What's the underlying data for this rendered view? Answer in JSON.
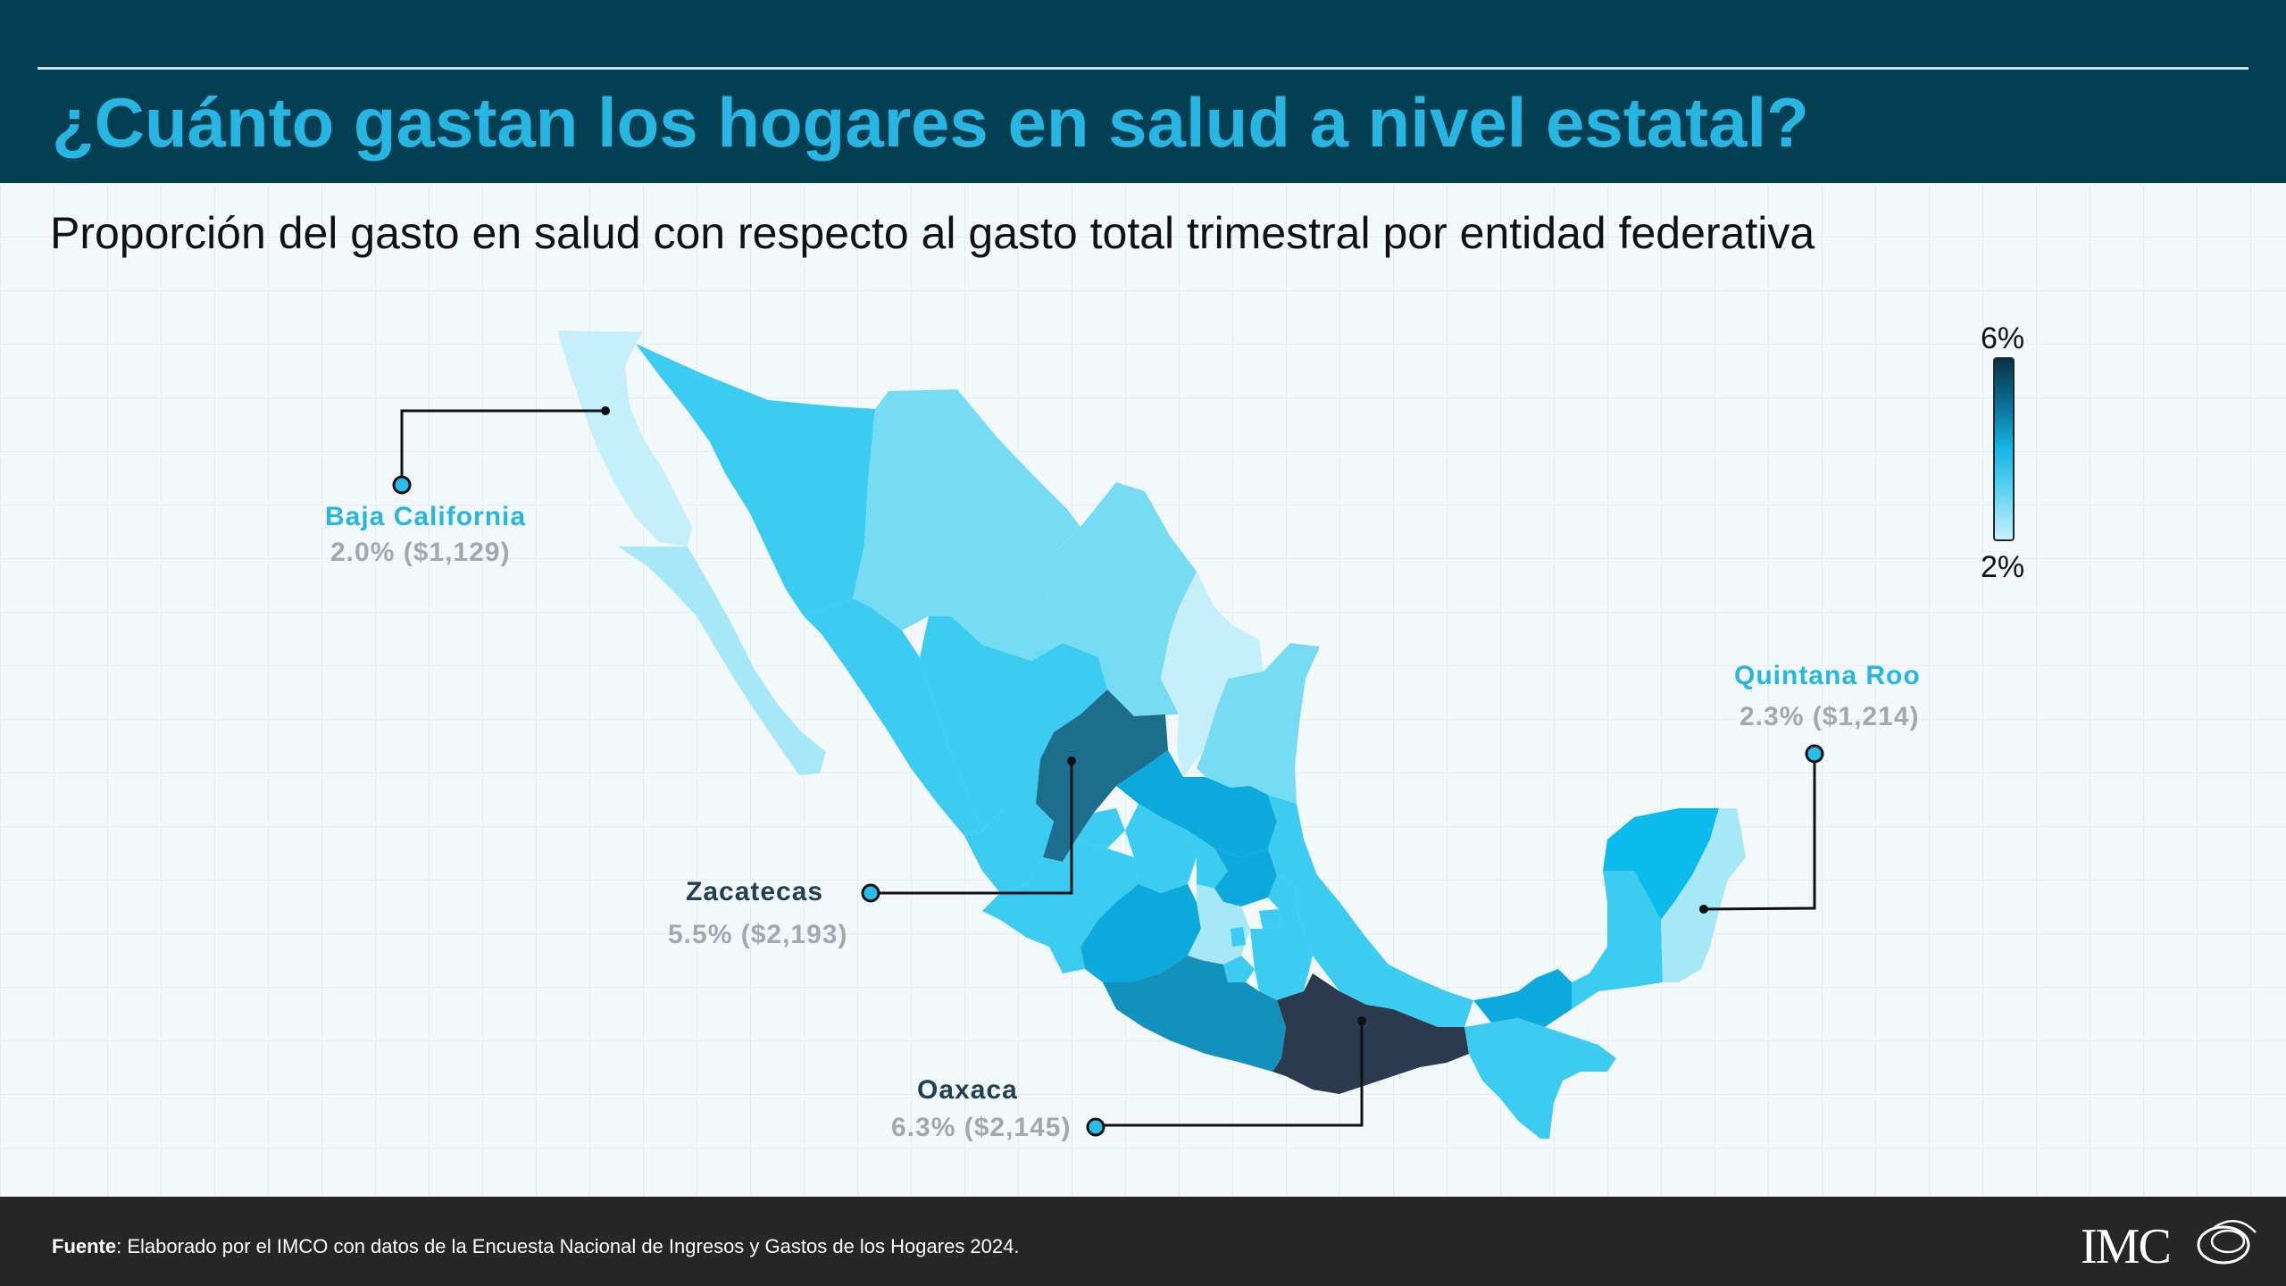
{
  "header": {
    "title": "¿Cuánto gastan los hogares en salud a nivel estatal?"
  },
  "subtitle": "Proporción del gasto en salud con respecto al gasto total trimestral por entidad federativa",
  "legend": {
    "max_label": "6%",
    "min_label": "2%",
    "max_color": "#0a3346",
    "min_color": "#c9f0fb"
  },
  "callouts": {
    "baja_california": {
      "name": "Baja California",
      "value": "2.0% ($1,129)",
      "color": "#27b6e2"
    },
    "quintana_roo": {
      "name": "Quintana Roo",
      "value": "2.3% ($1,214)",
      "color": "#27b6e2"
    },
    "zacatecas": {
      "name": "Zacatecas",
      "value": "5.5% ($2,193)",
      "color": "#1f3f52"
    },
    "oaxaca": {
      "name": "Oaxaca",
      "value": "6.3% ($2,145)",
      "color": "#1f3f52"
    }
  },
  "map_colors": {
    "darkest": "#2c3a4f",
    "dark": "#1d6d8c",
    "mid_dark": "#1391bd",
    "mid": "#0ba9dc",
    "base": "#3ccbf1",
    "light": "#75dcf4",
    "lighter": "#a6e8f8",
    "lightest": "#c5f0fb"
  },
  "footer": {
    "source_bold": "Fuente",
    "source_text": ": Elaborado por el IMCO con datos de la Encuesta Nacional de Ingresos y Gastos de los Hogares 2024.",
    "logo_text": "IMC"
  }
}
